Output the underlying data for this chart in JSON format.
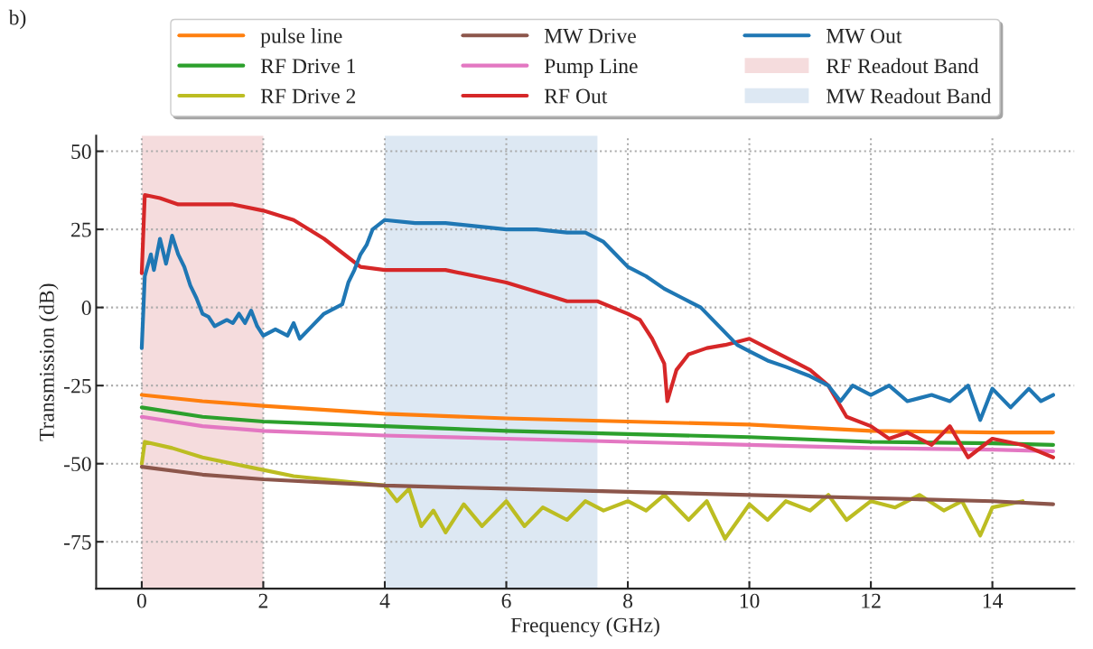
{
  "chart_data": {
    "type": "line",
    "xlabel": "Frequency (GHz)",
    "ylabel": "Transmission (dB)",
    "annotations": [
      "b)"
    ],
    "xlim": [
      -0.75,
      15.35
    ],
    "ylim": [
      -90,
      55
    ],
    "xticks": [
      0,
      2,
      4,
      6,
      8,
      10,
      12,
      14
    ],
    "yticks": [
      -75,
      -50,
      -25,
      0,
      25,
      50
    ],
    "grid": true,
    "legend": "top",
    "line_style": "solid",
    "marker": "none",
    "bands": [
      {
        "axis": "x",
        "from": 0,
        "to": 2,
        "label": "RF Readout Band",
        "color": "#f5dcdd"
      },
      {
        "axis": "x",
        "from": 4,
        "to": 7.5,
        "label": "MW Readout Band",
        "color": "#dde8f3"
      }
    ],
    "series": [
      {
        "name": "pulse line",
        "color": "#ff7f0e",
        "x": [
          0,
          1,
          2,
          4,
          6,
          8,
          10,
          12,
          14,
          15
        ],
        "values": [
          -28,
          -30,
          -31.5,
          -34,
          -35.5,
          -36.5,
          -37.5,
          -39.5,
          -40,
          -40
        ]
      },
      {
        "name": "RF Drive 1",
        "color": "#2ca02c",
        "x": [
          0,
          1,
          2,
          4,
          6,
          8,
          10,
          12,
          14,
          15
        ],
        "values": [
          -32,
          -35,
          -36.5,
          -38,
          -39.5,
          -40.5,
          -41.5,
          -43,
          -43.5,
          -44
        ]
      },
      {
        "name": "RF Drive 2",
        "color": "#bcbd22",
        "x": [
          0,
          0.05,
          0.5,
          1,
          1.5,
          2,
          2.5,
          3,
          3.5,
          4,
          4.2,
          4.4,
          4.6,
          4.8,
          5.0,
          5.3,
          5.6,
          6.0,
          6.3,
          6.6,
          7.0,
          7.3,
          7.6,
          8.0,
          8.3,
          8.6,
          9.0,
          9.3,
          9.6,
          10.0,
          10.3,
          10.6,
          11.0,
          11.3,
          11.6,
          12.0,
          12.4,
          12.8,
          13.2,
          13.5,
          13.8,
          14.0,
          14.5
        ],
        "values": [
          -50,
          -43,
          -45,
          -48,
          -50,
          -52,
          -54,
          -55,
          -56,
          -57,
          -62,
          -58,
          -70,
          -65,
          -72,
          -63,
          -70,
          -62,
          -70,
          -64,
          -68,
          -62,
          -65,
          -62,
          -65,
          -60,
          -68,
          -62,
          -74,
          -63,
          -68,
          -62,
          -65,
          -60,
          -68,
          -62,
          -64,
          -60,
          -65,
          -62,
          -73,
          -64,
          -62
        ]
      },
      {
        "name": "MW Drive",
        "color": "#8c564b",
        "x": [
          0,
          1,
          2,
          4,
          6,
          8,
          10,
          12,
          14,
          15
        ],
        "values": [
          -51,
          -53.5,
          -55,
          -57,
          -58,
          -59,
          -60,
          -61,
          -62,
          -63
        ]
      },
      {
        "name": "Pump Line",
        "color": "#e377c2",
        "x": [
          0,
          1,
          2,
          4,
          6,
          8,
          10,
          12,
          14,
          15
        ],
        "values": [
          -35,
          -38,
          -39.5,
          -41,
          -42,
          -43,
          -44,
          -45,
          -45.5,
          -46
        ]
      },
      {
        "name": "RF Out",
        "color": "#d62728",
        "x": [
          0,
          0.05,
          0.3,
          0.6,
          1.0,
          1.5,
          2.0,
          2.5,
          3.0,
          3.4,
          3.6,
          4.0,
          4.5,
          5.0,
          5.5,
          6.0,
          6.5,
          7.0,
          7.5,
          8.0,
          8.2,
          8.4,
          8.6,
          8.65,
          8.8,
          9.0,
          9.3,
          9.6,
          10.0,
          10.4,
          10.8,
          11.0,
          11.3,
          11.6,
          12.0,
          12.3,
          12.6,
          13.0,
          13.3,
          13.6,
          14.0,
          14.5,
          15.0
        ],
        "values": [
          11,
          36,
          35,
          33,
          33,
          33,
          31,
          28,
          22,
          16,
          13,
          12,
          12,
          12,
          10,
          8,
          5,
          2,
          2,
          -2,
          -4,
          -10,
          -18,
          -30,
          -20,
          -15,
          -13,
          -12,
          -10,
          -14,
          -18,
          -20,
          -25,
          -35,
          -38,
          -42,
          -40,
          -44,
          -38,
          -48,
          -42,
          -44,
          -48
        ]
      },
      {
        "name": "MW Out",
        "color": "#1f77b4",
        "x": [
          0,
          0.05,
          0.15,
          0.2,
          0.3,
          0.4,
          0.5,
          0.6,
          0.7,
          0.8,
          0.9,
          1.0,
          1.1,
          1.2,
          1.4,
          1.5,
          1.6,
          1.7,
          1.8,
          1.9,
          2.0,
          2.2,
          2.4,
          2.5,
          2.6,
          2.8,
          3.0,
          3.2,
          3.3,
          3.4,
          3.5,
          3.6,
          3.7,
          3.8,
          4.0,
          4.5,
          5.0,
          5.5,
          6.0,
          6.5,
          7.0,
          7.3,
          7.6,
          7.8,
          8.0,
          8.3,
          8.6,
          8.9,
          9.2,
          9.5,
          9.8,
          10.0,
          10.3,
          10.6,
          11.0,
          11.3,
          11.5,
          11.7,
          12.0,
          12.3,
          12.6,
          13.0,
          13.3,
          13.6,
          13.8,
          14.0,
          14.3,
          14.6,
          14.8,
          15.0
        ],
        "values": [
          -13,
          10,
          17,
          12,
          22,
          14,
          23,
          17,
          13,
          7,
          3,
          -2,
          -3,
          -6,
          -4,
          -5,
          -2,
          -5,
          -1,
          -6,
          -9,
          -7,
          -9,
          -5,
          -10,
          -6,
          -2,
          0,
          1,
          8,
          12,
          17,
          20,
          25,
          28,
          27,
          27,
          26,
          25,
          25,
          24,
          24,
          21,
          17,
          13,
          10,
          6,
          3,
          0,
          -6,
          -12,
          -14,
          -17,
          -19,
          -22,
          -25,
          -30,
          -25,
          -28,
          -25,
          -30,
          -28,
          -30,
          -25,
          -36,
          -26,
          -32,
          -26,
          -30,
          -28
        ]
      }
    ]
  }
}
